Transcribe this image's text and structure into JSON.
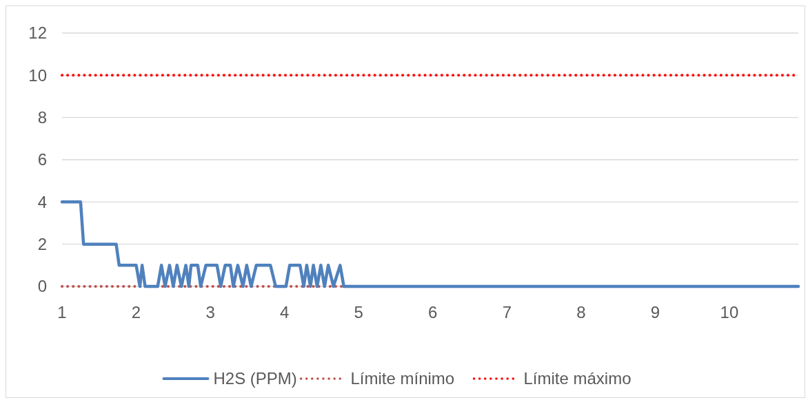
{
  "chart_data": {
    "type": "line",
    "x": [
      1.0,
      1.25,
      1.29,
      1.73,
      1.77,
      2.0,
      2.05,
      2.08,
      2.12,
      2.29,
      2.34,
      2.39,
      2.45,
      2.5,
      2.55,
      2.61,
      2.67,
      2.71,
      2.74,
      2.83,
      2.87,
      2.94,
      3.09,
      3.14,
      3.2,
      3.27,
      3.31,
      3.37,
      3.44,
      3.49,
      3.55,
      3.62,
      3.81,
      3.88,
      4.02,
      4.07,
      4.21,
      4.26,
      4.3,
      4.35,
      4.39,
      4.44,
      4.49,
      4.54,
      4.59,
      4.66,
      4.75,
      4.8,
      10.93
    ],
    "series": [
      {
        "name": "H2S (PPM)",
        "color": "#4f81bd",
        "values": [
          4,
          4,
          2,
          2,
          1,
          1,
          0,
          1,
          0,
          0,
          1,
          0,
          1,
          0,
          1,
          0,
          1,
          0,
          1,
          1,
          0,
          1,
          1,
          0,
          1,
          1,
          0,
          1,
          0,
          1,
          0,
          1,
          1,
          0,
          0,
          1,
          1,
          0,
          1,
          0,
          1,
          0,
          1,
          0,
          1,
          0,
          1,
          0,
          0
        ]
      }
    ],
    "ref_lines": [
      {
        "axis": "y",
        "value": 0,
        "label": "Límite mínimo",
        "color": "#c0504d",
        "line_style": "dotted"
      },
      {
        "axis": "y",
        "value": 10,
        "label": "Límite máximo",
        "color": "#ff0000",
        "line_style": "dotted"
      }
    ],
    "xlim": [
      1,
      10.93
    ],
    "xticks": [
      1,
      2,
      3,
      4,
      5,
      6,
      7,
      8,
      9,
      10
    ],
    "ylim": [
      0,
      12
    ],
    "yticks": [
      0,
      2,
      4,
      6,
      8,
      10,
      12
    ],
    "grid": "y",
    "legend": "bottom",
    "line_style": "solid",
    "marker": "none"
  }
}
